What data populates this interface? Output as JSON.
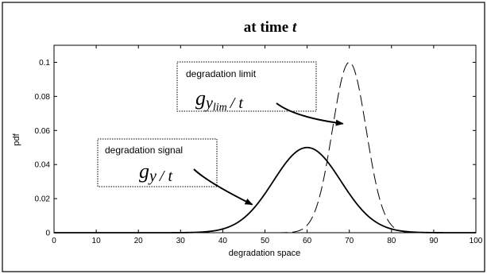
{
  "chart_data": {
    "type": "line",
    "title": "at time ",
    "title_var": "t",
    "xlabel": "degradation space",
    "ylabel": "pdf",
    "xlim": [
      0,
      100
    ],
    "ylim": [
      0,
      0.11
    ],
    "xticks": [
      0,
      10,
      20,
      30,
      40,
      50,
      60,
      70,
      80,
      90,
      100
    ],
    "yticks": [
      0,
      0.02,
      0.04,
      0.06,
      0.08,
      0.1
    ],
    "ytick_labels": [
      "0",
      "0.02",
      "0.04",
      "0.06",
      "0.08",
      "0.1"
    ],
    "grid": false,
    "series": [
      {
        "curve": "normal",
        "mean": 60,
        "std": 8,
        "peak": 0.05,
        "style": "solid",
        "color": "#000000"
      },
      {
        "curve": "normal",
        "mean": 70,
        "std": 4,
        "peak": 0.1,
        "style": "dashed",
        "color": "#000000"
      }
    ],
    "annotations": {
      "limit": {
        "text": "degradation limit",
        "math_main": "g",
        "math_sub": "y",
        "math_subsub": "lim",
        "math_tail": "/ t",
        "arrow_to": [
          68.5,
          0.064
        ]
      },
      "signal": {
        "text": "degradation signal",
        "math_main": "g",
        "math_sub": "y",
        "math_tail": "/ t",
        "arrow_to": [
          47,
          0.0165
        ]
      }
    }
  }
}
